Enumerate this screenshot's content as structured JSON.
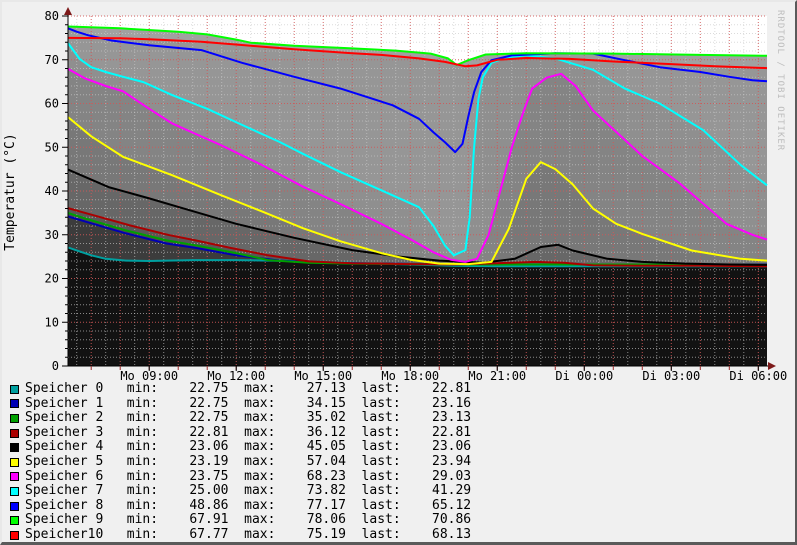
{
  "window": {
    "background": "#f0f0f0"
  },
  "chart_data": {
    "type": "area",
    "title": "",
    "ylabel": "Temperatur (°C)",
    "watermark": "RRDTOOL / TOBI OETIKER",
    "x_unit": "hours since Monday 00:00 (Mo=Monday, Di=Tuesday)",
    "x_range": [
      6.2,
      30.3
    ],
    "y_range": [
      0,
      80
    ],
    "grid": {
      "y_minor_step": 2,
      "y_major_step": 10,
      "x_minor_hours": 0.5,
      "x_major_hours": 1,
      "minor_color": "#c9c9c9",
      "major_color": "#d05858",
      "legend_position": "bottom"
    },
    "y_ticks": [
      {
        "v": 0,
        "label": "0"
      },
      {
        "v": 10,
        "label": "10"
      },
      {
        "v": 20,
        "label": "20"
      },
      {
        "v": 30,
        "label": "30"
      },
      {
        "v": 40,
        "label": "40"
      },
      {
        "v": 50,
        "label": "50"
      },
      {
        "v": 60,
        "label": "60"
      },
      {
        "v": 70,
        "label": "70"
      },
      {
        "v": 80,
        "label": "80"
      }
    ],
    "x_ticks": [
      {
        "h": 9,
        "label": "Mo 09:00"
      },
      {
        "h": 12,
        "label": "Mo 12:00"
      },
      {
        "h": 15,
        "label": "Mo 15:00"
      },
      {
        "h": 18,
        "label": "Mo 18:00"
      },
      {
        "h": 21,
        "label": "Mo 21:00"
      },
      {
        "h": 24,
        "label": "Di 00:00"
      },
      {
        "h": 27,
        "label": "Di 03:00"
      },
      {
        "h": 30,
        "label": "Di 06:00"
      }
    ],
    "area_order": [
      9,
      8,
      10,
      7,
      6,
      5,
      4,
      3,
      2,
      1,
      0
    ],
    "legend_labels": {
      "min": "min:",
      "max": "max:",
      "last": "last:"
    },
    "series": [
      {
        "name": "Speicher",
        "index": "0",
        "line": "#00a0a0",
        "fill": "#121212",
        "legend": {
          "min": "22.75",
          "max": "27.13",
          "last": "22.81"
        },
        "points": [
          [
            6.2,
            27.1
          ],
          [
            6.6,
            26.2
          ],
          [
            7.0,
            25.3
          ],
          [
            7.5,
            24.5
          ],
          [
            8.2,
            24.1
          ],
          [
            9.0,
            24.0
          ],
          [
            10.5,
            24.2
          ],
          [
            12.0,
            24.2
          ],
          [
            14.0,
            24.0
          ],
          [
            16.0,
            23.6
          ],
          [
            18.0,
            23.2
          ],
          [
            19.5,
            22.9
          ],
          [
            21.0,
            22.8
          ],
          [
            24.0,
            22.8
          ],
          [
            27.0,
            22.8
          ],
          [
            30.3,
            22.8
          ]
        ]
      },
      {
        "name": "Speicher",
        "index": "1",
        "line": "#0000b4",
        "fill": "#3c3c3c",
        "legend": {
          "min": "22.75",
          "max": "34.15",
          "last": "23.16"
        },
        "points": [
          [
            6.2,
            34.2
          ],
          [
            6.8,
            33.0
          ],
          [
            8.2,
            30.3
          ],
          [
            9.6,
            28.0
          ],
          [
            10.6,
            27.0
          ],
          [
            12.0,
            25.3
          ],
          [
            13.5,
            24.1
          ],
          [
            15.0,
            23.6
          ],
          [
            17.0,
            23.4
          ],
          [
            20.0,
            23.2
          ],
          [
            24.0,
            23.2
          ],
          [
            30.3,
            23.2
          ]
        ]
      },
      {
        "name": "Speicher",
        "index": "2",
        "line": "#00a000",
        "fill": "#4a4a4a",
        "legend": {
          "min": "22.75",
          "max": "35.02",
          "last": "23.13"
        },
        "points": [
          [
            6.2,
            35.0
          ],
          [
            6.8,
            33.7
          ],
          [
            8.2,
            31.0
          ],
          [
            9.6,
            28.7
          ],
          [
            10.6,
            27.6
          ],
          [
            12.0,
            25.8
          ],
          [
            13.1,
            24.2
          ],
          [
            14.5,
            23.6
          ],
          [
            16.0,
            23.4
          ],
          [
            18.0,
            23.3
          ],
          [
            20.0,
            23.2
          ],
          [
            23.0,
            23.2
          ],
          [
            26.0,
            23.2
          ],
          [
            30.3,
            23.1
          ]
        ]
      },
      {
        "name": "Speicher",
        "index": "3",
        "line": "#aa0000",
        "fill": "#585858",
        "legend": {
          "min": "22.81",
          "max": "36.12",
          "last": "22.81"
        },
        "points": [
          [
            6.2,
            36.1
          ],
          [
            6.9,
            34.8
          ],
          [
            8.3,
            32.2
          ],
          [
            9.7,
            29.9
          ],
          [
            10.6,
            28.7
          ],
          [
            11.8,
            27.0
          ],
          [
            13.1,
            25.3
          ],
          [
            14.5,
            23.9
          ],
          [
            16.0,
            23.5
          ],
          [
            18.0,
            23.3
          ],
          [
            19.5,
            23.2
          ],
          [
            21.0,
            23.5
          ],
          [
            22.3,
            23.8
          ],
          [
            23.3,
            23.6
          ],
          [
            24.3,
            23.0
          ],
          [
            26.0,
            22.9
          ],
          [
            28.0,
            22.9
          ],
          [
            30.3,
            22.8
          ]
        ]
      },
      {
        "name": "Speicher",
        "index": "4",
        "line": "#000000",
        "fill": "#676767",
        "legend": {
          "min": "23.06",
          "max": "45.05",
          "last": "23.06"
        },
        "points": [
          [
            6.2,
            44.9
          ],
          [
            7.6,
            40.9
          ],
          [
            9.0,
            38.3
          ],
          [
            10.3,
            35.8
          ],
          [
            12.0,
            32.5
          ],
          [
            14.0,
            29.3
          ],
          [
            16.0,
            26.5
          ],
          [
            17.5,
            25.1
          ],
          [
            19.0,
            24.1
          ],
          [
            20.5,
            23.6
          ],
          [
            21.6,
            24.5
          ],
          [
            22.5,
            27.2
          ],
          [
            23.1,
            27.7
          ],
          [
            23.6,
            26.4
          ],
          [
            24.8,
            24.5
          ],
          [
            26.0,
            23.8
          ],
          [
            27.5,
            23.4
          ],
          [
            29.0,
            23.2
          ],
          [
            30.3,
            23.1
          ]
        ]
      },
      {
        "name": "Speicher",
        "index": "5",
        "line": "#ffff00",
        "fill": "#787878",
        "legend": {
          "min": "23.19",
          "max": "57.04",
          "last": "23.94"
        },
        "points": [
          [
            6.2,
            56.9
          ],
          [
            7.0,
            52.5
          ],
          [
            8.1,
            47.8
          ],
          [
            9.8,
            43.6
          ],
          [
            11.5,
            39.0
          ],
          [
            12.9,
            35.3
          ],
          [
            14.3,
            31.5
          ],
          [
            15.6,
            28.5
          ],
          [
            17.0,
            25.8
          ],
          [
            18.0,
            24.3
          ],
          [
            19.0,
            23.4
          ],
          [
            20.0,
            23.3
          ],
          [
            20.8,
            23.8
          ],
          [
            21.4,
            31.4
          ],
          [
            22.0,
            42.8
          ],
          [
            22.5,
            46.6
          ],
          [
            23.0,
            45.0
          ],
          [
            23.6,
            41.5
          ],
          [
            24.3,
            36.0
          ],
          [
            25.1,
            32.5
          ],
          [
            26.0,
            30.2
          ],
          [
            27.7,
            26.4
          ],
          [
            29.4,
            24.5
          ],
          [
            30.3,
            24.1
          ]
        ]
      },
      {
        "name": "Speicher",
        "index": "6",
        "line": "#ff00ff",
        "fill": "#848484",
        "legend": {
          "min": "23.75",
          "max": "68.23",
          "last": "29.03"
        },
        "points": [
          [
            6.2,
            67.9
          ],
          [
            6.8,
            65.7
          ],
          [
            7.5,
            64.0
          ],
          [
            8.1,
            62.8
          ],
          [
            9.0,
            58.8
          ],
          [
            9.8,
            55.4
          ],
          [
            11.5,
            50.4
          ],
          [
            12.9,
            45.9
          ],
          [
            14.3,
            41.0
          ],
          [
            15.6,
            37.0
          ],
          [
            17.0,
            32.5
          ],
          [
            18.0,
            29.0
          ],
          [
            18.8,
            26.0
          ],
          [
            19.4,
            24.3
          ],
          [
            19.9,
            23.8
          ],
          [
            20.3,
            24.5
          ],
          [
            20.7,
            30.0
          ],
          [
            21.1,
            40.0
          ],
          [
            21.5,
            50.0
          ],
          [
            21.9,
            58.1
          ],
          [
            22.2,
            63.4
          ],
          [
            22.7,
            65.9
          ],
          [
            23.2,
            66.8
          ],
          [
            23.7,
            64.0
          ],
          [
            24.3,
            58.4
          ],
          [
            25.1,
            53.5
          ],
          [
            26.0,
            48.0
          ],
          [
            27.3,
            41.7
          ],
          [
            28.9,
            32.5
          ],
          [
            29.8,
            30.0
          ],
          [
            30.3,
            28.9
          ]
        ]
      },
      {
        "name": "Speicher",
        "index": "7",
        "line": "#00ffff",
        "fill": "#8f8f8f",
        "legend": {
          "min": "25.00",
          "max": "73.82",
          "last": "41.29"
        },
        "points": [
          [
            6.2,
            73.8
          ],
          [
            6.6,
            70.2
          ],
          [
            7.0,
            68.3
          ],
          [
            7.5,
            67.2
          ],
          [
            8.1,
            66.1
          ],
          [
            8.8,
            64.9
          ],
          [
            9.8,
            61.9
          ],
          [
            11.0,
            58.8
          ],
          [
            12.2,
            55.1
          ],
          [
            13.5,
            51.2
          ],
          [
            14.3,
            48.5
          ],
          [
            15.6,
            44.3
          ],
          [
            17.4,
            39.0
          ],
          [
            18.3,
            36.3
          ],
          [
            18.8,
            32.0
          ],
          [
            19.2,
            27.5
          ],
          [
            19.5,
            25.3
          ],
          [
            19.9,
            26.5
          ],
          [
            20.05,
            34.0
          ],
          [
            20.2,
            50.0
          ],
          [
            20.35,
            61.0
          ],
          [
            20.5,
            66.0
          ],
          [
            20.8,
            69.3
          ],
          [
            21.3,
            70.5
          ],
          [
            22.0,
            71.0
          ],
          [
            23.0,
            70.3
          ],
          [
            24.3,
            67.7
          ],
          [
            25.4,
            63.4
          ],
          [
            26.6,
            60.0
          ],
          [
            28.1,
            53.9
          ],
          [
            29.4,
            45.9
          ],
          [
            30.3,
            41.3
          ]
        ]
      },
      {
        "name": "Speicher",
        "index": "8",
        "line": "#0000ff",
        "fill": "#9b9b9b",
        "legend": {
          "min": "48.86",
          "max": "77.17",
          "last": "65.12"
        },
        "points": [
          [
            6.2,
            77.2
          ],
          [
            6.5,
            76.4
          ],
          [
            6.9,
            75.6
          ],
          [
            7.7,
            74.4
          ],
          [
            9.0,
            73.3
          ],
          [
            10.8,
            72.2
          ],
          [
            12.2,
            69.3
          ],
          [
            14.0,
            66.1
          ],
          [
            15.6,
            63.4
          ],
          [
            17.4,
            59.6
          ],
          [
            18.3,
            56.5
          ],
          [
            18.8,
            53.4
          ],
          [
            19.2,
            51.1
          ],
          [
            19.55,
            48.9
          ],
          [
            19.8,
            50.8
          ],
          [
            20.0,
            57.0
          ],
          [
            20.2,
            62.6
          ],
          [
            20.45,
            67.2
          ],
          [
            20.8,
            69.9
          ],
          [
            21.5,
            71.0
          ],
          [
            23.0,
            71.5
          ],
          [
            24.3,
            71.4
          ],
          [
            25.4,
            69.9
          ],
          [
            26.6,
            68.3
          ],
          [
            28.0,
            67.2
          ],
          [
            29.0,
            66.1
          ],
          [
            29.8,
            65.3
          ],
          [
            30.3,
            65.1
          ]
        ]
      },
      {
        "name": "Speicher",
        "index": "9",
        "line": "#00ff00",
        "fill": "#a1a1a1",
        "legend": {
          "min": "67.91",
          "max": "78.06",
          "last": "70.86"
        },
        "points": [
          [
            6.2,
            77.6
          ],
          [
            8.0,
            77.2
          ],
          [
            10.0,
            76.4
          ],
          [
            11.0,
            75.8
          ],
          [
            12.0,
            74.6
          ],
          [
            12.5,
            73.9
          ],
          [
            14.0,
            73.2
          ],
          [
            16.0,
            72.6
          ],
          [
            17.5,
            72.1
          ],
          [
            18.7,
            71.4
          ],
          [
            19.3,
            70.3
          ],
          [
            19.6,
            68.8
          ],
          [
            20.0,
            69.9
          ],
          [
            20.6,
            71.2
          ],
          [
            22.0,
            71.5
          ],
          [
            25.0,
            71.4
          ],
          [
            28.0,
            71.1
          ],
          [
            30.3,
            70.9
          ]
        ]
      },
      {
        "name": "Speicher",
        "index": "10",
        "line": "#ff0000",
        "fill": "#969696",
        "legend": {
          "min": "67.77",
          "max": "75.19",
          "last": "68.13"
        },
        "points": [
          [
            6.2,
            75.0
          ],
          [
            8.0,
            74.9
          ],
          [
            9.0,
            74.7
          ],
          [
            10.8,
            74.1
          ],
          [
            12.3,
            73.3
          ],
          [
            14.0,
            72.4
          ],
          [
            16.0,
            71.5
          ],
          [
            17.0,
            71.1
          ],
          [
            18.3,
            70.3
          ],
          [
            19.2,
            69.5
          ],
          [
            19.9,
            68.5
          ],
          [
            20.3,
            68.7
          ],
          [
            21.0,
            70.0
          ],
          [
            22.0,
            70.4
          ],
          [
            23.5,
            70.2
          ],
          [
            25.0,
            69.6
          ],
          [
            27.0,
            69.0
          ],
          [
            28.5,
            68.5
          ],
          [
            30.3,
            68.1
          ]
        ]
      }
    ]
  }
}
